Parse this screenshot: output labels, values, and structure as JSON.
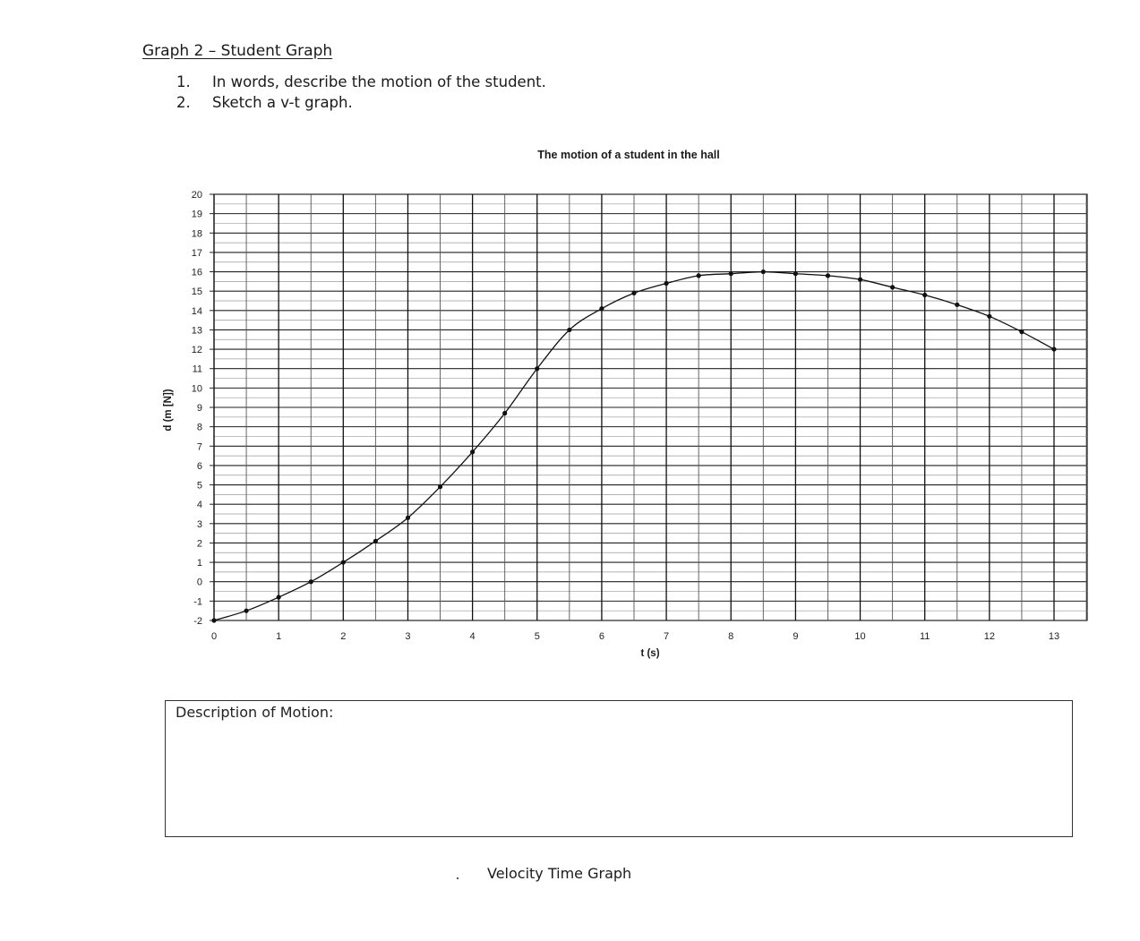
{
  "heading": "Graph 2 – Student Graph",
  "questions": [
    {
      "number": "1.",
      "text": "In words, describe the motion of the student."
    },
    {
      "number": "2.",
      "text": "Sketch a v-t graph."
    }
  ],
  "chart_data": {
    "type": "line",
    "title": "The motion of a student in the hall",
    "xlabel": "t (s)",
    "ylabel": "d (m [N])",
    "xlim": [
      0,
      13
    ],
    "ylim": [
      -2,
      20
    ],
    "x_ticks": [
      0,
      1,
      2,
      3,
      4,
      5,
      6,
      7,
      8,
      9,
      10,
      11,
      12,
      13
    ],
    "y_ticks": [
      -2,
      -1,
      0,
      1,
      2,
      3,
      4,
      5,
      6,
      7,
      8,
      9,
      10,
      11,
      12,
      13,
      14,
      15,
      16,
      17,
      18,
      19,
      20
    ],
    "grid": true,
    "x": [
      0,
      0.5,
      1,
      1.5,
      2,
      2.5,
      3,
      3.5,
      4,
      4.5,
      5,
      5.5,
      6,
      6.5,
      7,
      7.5,
      8,
      8.5,
      9,
      9.5,
      10,
      10.5,
      11,
      11.5,
      12,
      12.5,
      13
    ],
    "y": [
      -2,
      -1.5,
      -0.8,
      0,
      1,
      2.1,
      3.3,
      4.9,
      6.7,
      8.7,
      11,
      13,
      14.1,
      14.9,
      15.4,
      15.8,
      15.9,
      16,
      15.9,
      15.8,
      15.6,
      15.2,
      14.8,
      14.3,
      13.7,
      12.9,
      12
    ]
  },
  "description_box": {
    "label": "Description of Motion:"
  },
  "vt_graph_title": "Velocity Time Graph"
}
